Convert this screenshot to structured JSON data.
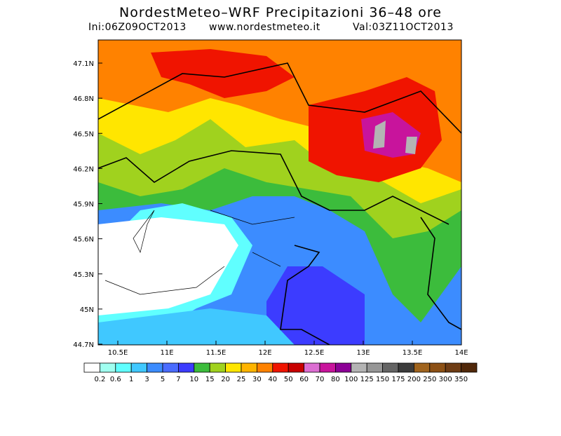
{
  "title": "NordestMeteo–WRF Precipitazioni 36–48 ore",
  "subtitle": {
    "init": "Ini:06Z09OCT2013",
    "site": "www.nordestmeteo.it",
    "valid": "Val:03Z11OCT2013"
  },
  "map": {
    "lat_ticks": [
      "47.1N",
      "46.8N",
      "46.5N",
      "46.2N",
      "45.9N",
      "45.6N",
      "45.3N",
      "45N",
      "44.7N"
    ],
    "lon_ticks": [
      "10.5E",
      "11E",
      "11.5E",
      "12E",
      "12.5E",
      "13E",
      "13.5E",
      "14E"
    ]
  },
  "legend": {
    "colors": [
      "#ffffff",
      "#a0fff0",
      "#60ffff",
      "#40c8ff",
      "#3c8cff",
      "#4a6cff",
      "#3c3cff",
      "#3cbc3c",
      "#a0d21e",
      "#ffe600",
      "#ffb400",
      "#ff8200",
      "#f01400",
      "#c80000",
      "#dc6ed2",
      "#c8149c",
      "#8c0096",
      "#b4b4b4",
      "#969696",
      "#646464",
      "#3c3c3c",
      "#a0641e",
      "#8c5014",
      "#6e3c14",
      "#50280a"
    ],
    "labels": [
      "0.2",
      "0.6",
      "1",
      "3",
      "5",
      "7",
      "10",
      "15",
      "20",
      "25",
      "30",
      "40",
      "50",
      "60",
      "70",
      "80",
      "100",
      "125",
      "150",
      "175",
      "200",
      "250",
      "300",
      "350"
    ]
  }
}
